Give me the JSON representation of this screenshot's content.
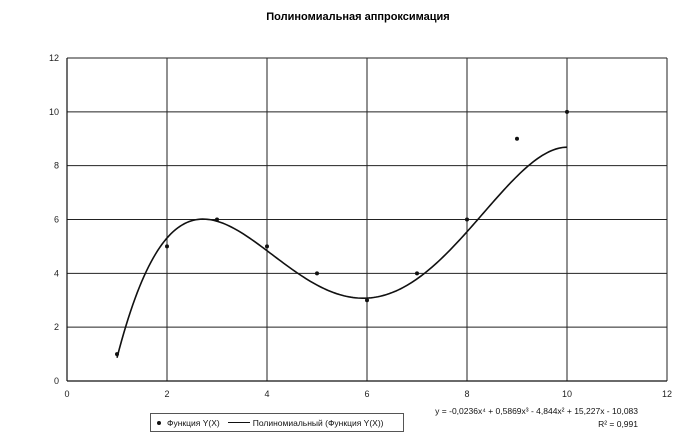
{
  "chart_data": {
    "type": "scatter",
    "title": "Полиномиальная аппроксимация",
    "xlabel": "",
    "ylabel": "",
    "xlim": [
      0,
      12
    ],
    "ylim": [
      0,
      12
    ],
    "x_ticks": [
      "0",
      "2",
      "4",
      "6",
      "8",
      "10",
      "12"
    ],
    "y_ticks": [
      "0",
      "2",
      "4",
      "6",
      "8",
      "10",
      "12"
    ],
    "grid": true,
    "legend_placement": "bottom",
    "series": [
      {
        "name": "Функция Y(X)",
        "kind": "scatter",
        "x": [
          1,
          2,
          3,
          4,
          5,
          6,
          7,
          8,
          9,
          10
        ],
        "y": [
          1,
          5,
          6,
          5,
          4,
          3,
          4,
          6,
          9,
          10
        ]
      },
      {
        "name": "Полиномиальный (Функция Y(X))",
        "kind": "trendline",
        "x_range": [
          1,
          10
        ],
        "coefficients": [
          -0.0236,
          0.5869,
          -4.844,
          15.227,
          -10.083
        ]
      }
    ],
    "annotations": {
      "equation": "y = -0,0236x⁴ + 0,5869x³ - 4,844x² + 15,227x - 10,083",
      "r_squared": "R² = 0,991"
    },
    "colors": {
      "marks": "#111111",
      "grid": "#222222",
      "background": "#ffffff"
    }
  }
}
